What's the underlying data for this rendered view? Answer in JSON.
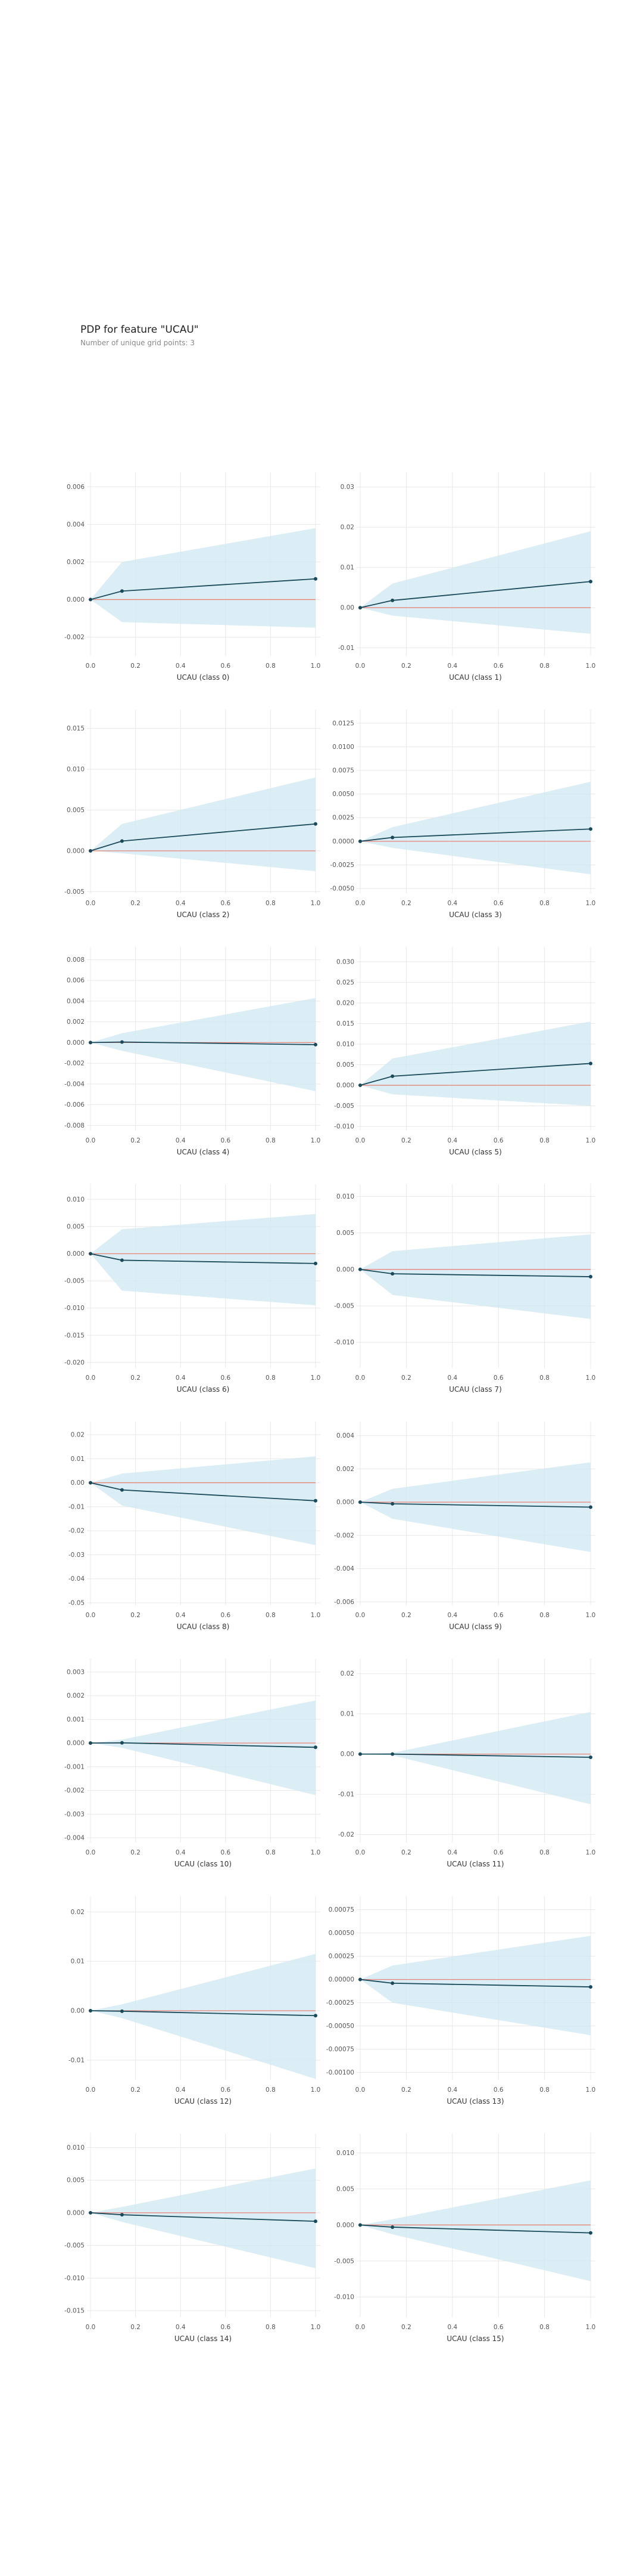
{
  "page": {
    "title": "PDP for feature \"UCAU\"",
    "subtitle": "Number of unique grid points: 3"
  },
  "colors": {
    "ci_fill": "#cfe8f1",
    "pdp_line": "#1a4a5a",
    "baseline": "#e8837a",
    "grid": "#e8e8e8",
    "tick_text": "#555555"
  },
  "chart_data": [
    {
      "type": "line",
      "title": "",
      "xlabel": "UCAU (class 0)",
      "ylabel": "",
      "x": [
        0,
        0.14,
        1
      ],
      "xlim": [
        0,
        1
      ],
      "xticks": [
        "0.0",
        "0.2",
        "0.4",
        "0.6",
        "0.8",
        "1.0"
      ],
      "yticks": [
        "-0.002",
        "0.000",
        "0.002",
        "0.004",
        "0.006"
      ],
      "ylim": [
        -0.003,
        0.0062
      ],
      "series": [
        {
          "values": [
            0,
            0.00045,
            0.0011
          ]
        }
      ],
      "ci_upper": [
        0,
        0.002,
        0.0038
      ],
      "ci_lower": [
        0,
        -0.0012,
        -0.0015
      ],
      "grid": true
    },
    {
      "type": "line",
      "title": "",
      "xlabel": "UCAU (class 1)",
      "ylabel": "",
      "x": [
        0,
        0.14,
        1
      ],
      "xlim": [
        0,
        1
      ],
      "xticks": [
        "0.0",
        "0.2",
        "0.4",
        "0.6",
        "0.8",
        "1.0"
      ],
      "yticks": [
        "-0.01",
        "0.00",
        "0.01",
        "0.02",
        "0.03"
      ],
      "ylim": [
        -0.012,
        0.031
      ],
      "series": [
        {
          "values": [
            0,
            0.0018,
            0.0065
          ]
        }
      ],
      "ci_upper": [
        0,
        0.006,
        0.019
      ],
      "ci_lower": [
        0,
        -0.002,
        -0.0065
      ],
      "grid": true
    },
    {
      "type": "line",
      "title": "",
      "xlabel": "UCAU (class 2)",
      "ylabel": "",
      "x": [
        0,
        0.14,
        1
      ],
      "xlim": [
        0,
        1
      ],
      "xticks": [
        "0.0",
        "0.2",
        "0.4",
        "0.6",
        "0.8",
        "1.0"
      ],
      "yticks": [
        "-0.005",
        "0.000",
        "0.005",
        "0.010",
        "0.015"
      ],
      "ylim": [
        -0.0052,
        0.016
      ],
      "series": [
        {
          "values": [
            0,
            0.0012,
            0.0033
          ]
        }
      ],
      "ci_upper": [
        0,
        0.0033,
        0.009
      ],
      "ci_lower": [
        0,
        -0.0003,
        -0.0025
      ],
      "grid": true
    },
    {
      "type": "line",
      "title": "",
      "xlabel": "UCAU (class 3)",
      "ylabel": "",
      "x": [
        0,
        0.14,
        1
      ],
      "xlim": [
        0,
        1
      ],
      "xticks": [
        "0.0",
        "0.2",
        "0.4",
        "0.6",
        "0.8",
        "1.0"
      ],
      "yticks": [
        "-0.0050",
        "-0.0025",
        "0.0000",
        "0.0025",
        "0.0050",
        "0.0075",
        "0.0100",
        "0.0125"
      ],
      "ylim": [
        -0.0055,
        0.0128
      ],
      "series": [
        {
          "values": [
            0,
            0.0004,
            0.0013
          ]
        }
      ],
      "ci_upper": [
        0,
        0.0015,
        0.0063
      ],
      "ci_lower": [
        0,
        -0.0007,
        -0.0035
      ],
      "grid": true
    },
    {
      "type": "line",
      "title": "",
      "xlabel": "UCAU (class 4)",
      "ylabel": "",
      "x": [
        0,
        0.14,
        1
      ],
      "xlim": [
        0,
        1
      ],
      "xticks": [
        "0.0",
        "0.2",
        "0.4",
        "0.6",
        "0.8",
        "1.0"
      ],
      "yticks": [
        "-0.008",
        "-0.006",
        "-0.004",
        "-0.002",
        "0.000",
        "0.002",
        "0.004",
        "0.006",
        "0.008"
      ],
      "ylim": [
        -0.0085,
        0.0082
      ],
      "series": [
        {
          "values": [
            0,
            5e-05,
            -0.0002
          ]
        }
      ],
      "ci_upper": [
        0,
        0.0009,
        0.0043
      ],
      "ci_lower": [
        0,
        -0.0008,
        -0.0047
      ],
      "grid": true
    },
    {
      "type": "line",
      "title": "",
      "xlabel": "UCAU (class 5)",
      "ylabel": "",
      "x": [
        0,
        0.14,
        1
      ],
      "xlim": [
        0,
        1
      ],
      "xticks": [
        "0.0",
        "0.2",
        "0.4",
        "0.6",
        "0.8",
        "1.0"
      ],
      "yticks": [
        "-0.010",
        "-0.005",
        "0.000",
        "0.005",
        "0.010",
        "0.015",
        "0.020",
        "0.025",
        "0.030"
      ],
      "ylim": [
        -0.011,
        0.031
      ],
      "series": [
        {
          "values": [
            0,
            0.0022,
            0.0053
          ]
        }
      ],
      "ci_upper": [
        0,
        0.0065,
        0.0155
      ],
      "ci_lower": [
        0,
        -0.0022,
        -0.005
      ],
      "grid": true
    },
    {
      "type": "line",
      "title": "",
      "xlabel": "UCAU (class 6)",
      "ylabel": "",
      "x": [
        0,
        0.14,
        1
      ],
      "xlim": [
        0,
        1
      ],
      "xticks": [
        "0.0",
        "0.2",
        "0.4",
        "0.6",
        "0.8",
        "1.0"
      ],
      "yticks": [
        "-0.020",
        "-0.015",
        "-0.010",
        "-0.005",
        "0.000",
        "0.005",
        "0.010"
      ],
      "ylim": [
        -0.021,
        0.0108
      ],
      "series": [
        {
          "values": [
            0,
            -0.0012,
            -0.0018
          ]
        }
      ],
      "ci_upper": [
        0,
        0.0045,
        0.0073
      ],
      "ci_lower": [
        0,
        -0.0068,
        -0.0095
      ],
      "grid": true
    },
    {
      "type": "line",
      "title": "",
      "xlabel": "UCAU (class 7)",
      "ylabel": "",
      "x": [
        0,
        0.14,
        1
      ],
      "xlim": [
        0,
        1
      ],
      "xticks": [
        "0.0",
        "0.2",
        "0.4",
        "0.6",
        "0.8",
        "1.0"
      ],
      "yticks": [
        "-0.010",
        "-0.005",
        "0.000",
        "0.005",
        "0.010"
      ],
      "ylim": [
        -0.0135,
        0.0102
      ],
      "series": [
        {
          "values": [
            0,
            -0.0006,
            -0.001
          ]
        }
      ],
      "ci_upper": [
        0,
        0.0025,
        0.0048
      ],
      "ci_lower": [
        0,
        -0.0035,
        -0.0068
      ],
      "grid": true
    },
    {
      "type": "line",
      "title": "",
      "xlabel": "UCAU (class 8)",
      "ylabel": "",
      "x": [
        0,
        0.14,
        1
      ],
      "xlim": [
        0,
        1
      ],
      "xticks": [
        "0.0",
        "0.2",
        "0.4",
        "0.6",
        "0.8",
        "1.0"
      ],
      "yticks": [
        "-0.05",
        "-0.04",
        "-0.03",
        "-0.02",
        "-0.01",
        "0.00",
        "0.01",
        "0.02"
      ],
      "ylim": [
        -0.051,
        0.021
      ],
      "series": [
        {
          "values": [
            0,
            -0.003,
            -0.0075
          ]
        }
      ],
      "ci_upper": [
        0,
        0.0038,
        0.011
      ],
      "ci_lower": [
        0,
        -0.0095,
        -0.026
      ],
      "grid": true
    },
    {
      "type": "line",
      "title": "",
      "xlabel": "UCAU (class 9)",
      "ylabel": "",
      "x": [
        0,
        0.14,
        1
      ],
      "xlim": [
        0,
        1
      ],
      "xticks": [
        "0.0",
        "0.2",
        "0.4",
        "0.6",
        "0.8",
        "1.0"
      ],
      "yticks": [
        "-0.006",
        "-0.004",
        "-0.002",
        "0.000",
        "0.002",
        "0.004"
      ],
      "ylim": [
        -0.0062,
        0.0042
      ],
      "series": [
        {
          "values": [
            0,
            -0.0001,
            -0.0003
          ]
        }
      ],
      "ci_upper": [
        0,
        0.0008,
        0.0024
      ],
      "ci_lower": [
        0,
        -0.001,
        -0.003
      ],
      "grid": true
    },
    {
      "type": "line",
      "title": "",
      "xlabel": "UCAU (class 10)",
      "ylabel": "",
      "x": [
        0,
        0.14,
        1
      ],
      "xlim": [
        0,
        1
      ],
      "xticks": [
        "0.0",
        "0.2",
        "0.4",
        "0.6",
        "0.8",
        "1.0"
      ],
      "yticks": [
        "-0.004",
        "-0.003",
        "-0.002",
        "-0.001",
        "0.000",
        "0.001",
        "0.002",
        "0.003"
      ],
      "ylim": [
        -0.0042,
        0.0031
      ],
      "series": [
        {
          "values": [
            0,
            1e-05,
            -0.00018
          ]
        }
      ],
      "ci_upper": [
        0,
        0.00015,
        0.0018
      ],
      "ci_lower": [
        0,
        -0.0002,
        -0.0022
      ],
      "grid": true
    },
    {
      "type": "line",
      "title": "",
      "xlabel": "UCAU (class 11)",
      "ylabel": "",
      "x": [
        0,
        0.14,
        1
      ],
      "xlim": [
        0,
        1
      ],
      "xticks": [
        "0.0",
        "0.2",
        "0.4",
        "0.6",
        "0.8",
        "1.0"
      ],
      "yticks": [
        "-0.02",
        "-0.01",
        "0.00",
        "0.01",
        "0.02"
      ],
      "ylim": [
        -0.022,
        0.021
      ],
      "series": [
        {
          "values": [
            0,
            0,
            -0.0008
          ]
        }
      ],
      "ci_upper": [
        0,
        0.0003,
        0.0105
      ],
      "ci_lower": [
        0,
        -0.0003,
        -0.0125
      ],
      "grid": true
    },
    {
      "type": "line",
      "title": "",
      "xlabel": "UCAU (class 12)",
      "ylabel": "",
      "x": [
        0,
        0.14,
        1
      ],
      "xlim": [
        0,
        1
      ],
      "xticks": [
        "0.0",
        "0.2",
        "0.4",
        "0.6",
        "0.8",
        "1.0"
      ],
      "yticks": [
        "-0.01",
        "0.00",
        "0.01",
        "0.02"
      ],
      "ylim": [
        -0.014,
        0.021
      ],
      "series": [
        {
          "values": [
            0,
            -0.0001,
            -0.001
          ]
        }
      ],
      "ci_upper": [
        0,
        0.0013,
        0.0115
      ],
      "ci_lower": [
        0,
        -0.0015,
        -0.0138
      ],
      "grid": true
    },
    {
      "type": "line",
      "title": "",
      "xlabel": "UCAU (class 13)",
      "ylabel": "",
      "x": [
        0,
        0.14,
        1
      ],
      "xlim": [
        0,
        1
      ],
      "xticks": [
        "0.0",
        "0.2",
        "0.4",
        "0.6",
        "0.8",
        "1.0"
      ],
      "yticks": [
        "-0.00100",
        "-0.00075",
        "-0.00050",
        "-0.00025",
        "0.00000",
        "0.00025",
        "0.00050",
        "0.00075"
      ],
      "ylim": [
        -0.00108,
        0.00078
      ],
      "series": [
        {
          "values": [
            0,
            -4e-05,
            -8e-05
          ]
        }
      ],
      "ci_upper": [
        0,
        0.00015,
        0.00047
      ],
      "ci_lower": [
        0,
        -0.00025,
        -0.0006
      ],
      "grid": true
    },
    {
      "type": "line",
      "title": "",
      "xlabel": "UCAU (class 14)",
      "ylabel": "",
      "x": [
        0,
        0.14,
        1
      ],
      "xlim": [
        0,
        1
      ],
      "xticks": [
        "0.0",
        "0.2",
        "0.4",
        "0.6",
        "0.8",
        "1.0"
      ],
      "yticks": [
        "-0.015",
        "-0.010",
        "-0.005",
        "0.000",
        "0.005",
        "0.010"
      ],
      "ylim": [
        -0.016,
        0.0105
      ],
      "series": [
        {
          "values": [
            0,
            -0.0003,
            -0.0013
          ]
        }
      ],
      "ci_upper": [
        0,
        0.0009,
        0.0068
      ],
      "ci_lower": [
        0,
        -0.0014,
        -0.0085
      ],
      "grid": true
    },
    {
      "type": "line",
      "title": "",
      "xlabel": "UCAU (class 15)",
      "ylabel": "",
      "x": [
        0,
        0.14,
        1
      ],
      "xlim": [
        0,
        1
      ],
      "xticks": [
        "0.0",
        "0.2",
        "0.4",
        "0.6",
        "0.8",
        "1.0"
      ],
      "yticks": [
        "-0.010",
        "-0.005",
        "0.000",
        "0.005",
        "0.010"
      ],
      "ylim": [
        -0.0128,
        0.0112
      ],
      "series": [
        {
          "values": [
            0,
            -0.0003,
            -0.0011
          ]
        }
      ],
      "ci_upper": [
        0,
        0.0008,
        0.0062
      ],
      "ci_lower": [
        0,
        -0.0013,
        -0.0078
      ],
      "grid": true
    }
  ]
}
